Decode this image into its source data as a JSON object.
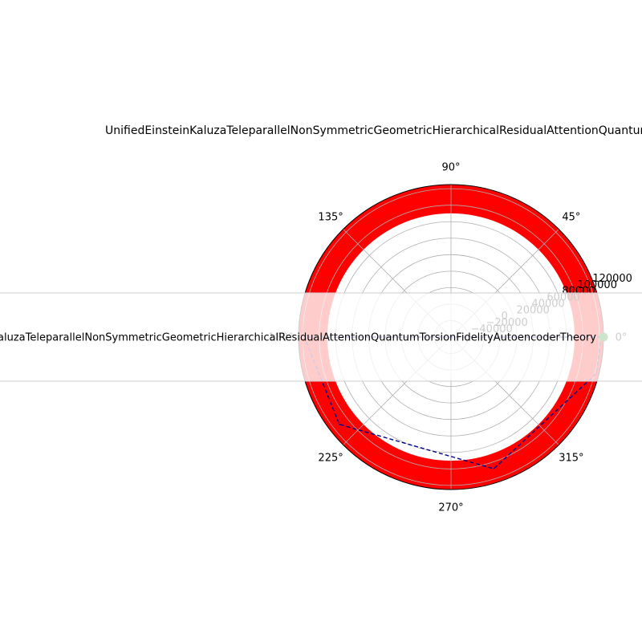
{
  "chart_data": {
    "type": "polar-line",
    "title": "UnifiedEinsteinKaluzaTeleparallelNonSymmetricGeometricHierarchicalResidualAttentionQuantumTorsionFidelityAutoencoderTheory",
    "angle_ticks": [
      "0°",
      "45°",
      "90°",
      "135°",
      "180°",
      "225°",
      "270°",
      "315°"
    ],
    "radial_ticks": [
      -40000,
      -20000,
      0,
      20000,
      40000,
      60000,
      80000,
      100000,
      120000
    ],
    "radial_tick_labels": [
      "−40000",
      "−20000",
      "0",
      "20000",
      "40000",
      "60000",
      "80000",
      "100000",
      "120000"
    ],
    "rlim": [
      -60000,
      125000
    ],
    "grid": true,
    "band": {
      "r_min": 90000,
      "r_max": 125000,
      "color": "#ff0000"
    },
    "series": [
      {
        "style": "dashed",
        "color": "#00008b",
        "points": [
          {
            "theta_deg": 0,
            "r": 122000
          },
          {
            "theta_deg": 180,
            "r": 118000
          },
          {
            "theta_deg": 218,
            "r": 112000
          },
          {
            "theta_deg": 288,
            "r": 108000
          },
          {
            "theta_deg": 346,
            "r": 122000
          }
        ]
      }
    ],
    "marker": {
      "theta_deg": 0,
      "r": 125000,
      "color": "#008000"
    },
    "legend": {
      "placement": "center-left",
      "entries": [
        {
          "label": "UnifiedEinsteinKaluzaTeleparallelNonSymmetricGeometricHierarchicalResidualAttentionQuantumTorsionFidelityAutoencoderTheory"
        }
      ]
    }
  }
}
